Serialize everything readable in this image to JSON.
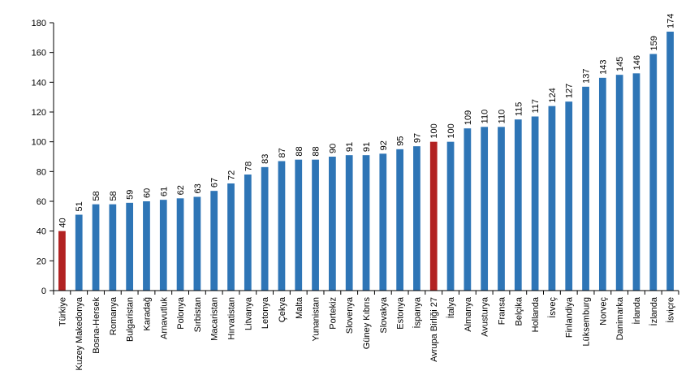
{
  "chart_data": {
    "type": "bar",
    "categories": [
      "Türkiye",
      "Kuzey Makedonya",
      "Bosna-Hersek",
      "Romanya",
      "Bulgaristan",
      "Karadağ",
      "Arnavutluk",
      "Polonya",
      "Sırbistan",
      "Macaristan",
      "Hırvatistan",
      "Litvanya",
      "Letonya",
      "Çekya",
      "Malta",
      "Yunanistan",
      "Portekiz",
      "Slovenya",
      "Güney Kıbrıs",
      "Slovakya",
      "Estonya",
      "İspanya",
      "Avrupa Birliği 27",
      "İtalya",
      "Almanya",
      "Avusturya",
      "Fransa",
      "Belçika",
      "Hollanda",
      "İsveç",
      "Finlandiya",
      "Lüksemburg",
      "Norveç",
      "Danimarka",
      "İrlanda",
      "İzlanda",
      "İsviçre"
    ],
    "values": [
      40,
      51,
      58,
      58,
      59,
      60,
      61,
      62,
      63,
      67,
      72,
      78,
      83,
      87,
      88,
      88,
      90,
      91,
      91,
      92,
      95,
      97,
      100,
      100,
      109,
      110,
      110,
      115,
      117,
      124,
      127,
      137,
      143,
      145,
      146,
      159,
      174
    ],
    "highlighted": [
      "Türkiye",
      "Avrupa Birliği 27"
    ],
    "colors": {
      "default": "#2e75b6",
      "highlight": "#b22222",
      "axis": "#000000"
    },
    "yticks": [
      0,
      20,
      40,
      60,
      80,
      100,
      120,
      140,
      160,
      180
    ],
    "ylim": [
      0,
      180
    ],
    "title": "",
    "xlabel": "",
    "ylabel": "",
    "grid": false,
    "legend": "none"
  }
}
